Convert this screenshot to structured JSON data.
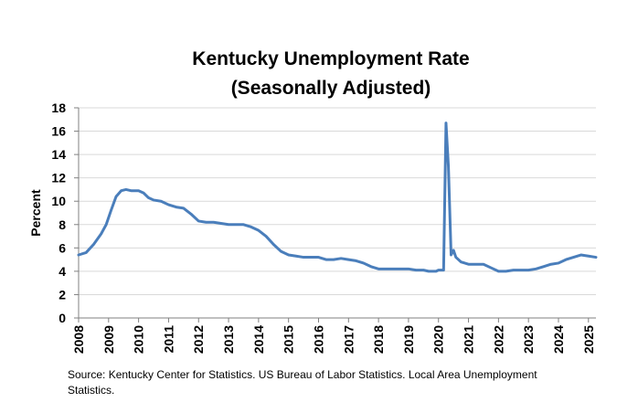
{
  "chart_data": {
    "type": "line",
    "title_line1": "Kentucky Unemployment Rate",
    "title_line2": "(Seasonally Adjusted)",
    "ylabel": "Percent",
    "xlabel": "",
    "ylim": [
      0,
      18
    ],
    "y_ticks": [
      "0",
      "2",
      "4",
      "6",
      "8",
      "10",
      "12",
      "14",
      "16",
      "18"
    ],
    "x_ticks": [
      "2008",
      "2009",
      "2010",
      "2011",
      "2012",
      "2013",
      "2014",
      "2015",
      "2016",
      "2017",
      "2018",
      "2019",
      "2020",
      "2021",
      "2022",
      "2023",
      "2024",
      "2025"
    ],
    "xlim": [
      2008.0,
      2025.25
    ],
    "grid": true,
    "legend": "none",
    "series": [
      {
        "name": "Kentucky Unemployment Rate",
        "color": "#4a7ebb",
        "points": [
          [
            2008.0,
            5.4
          ],
          [
            2008.25,
            5.6
          ],
          [
            2008.5,
            6.3
          ],
          [
            2008.75,
            7.2
          ],
          [
            2008.92,
            8.0
          ],
          [
            2009.08,
            9.2
          ],
          [
            2009.25,
            10.4
          ],
          [
            2009.42,
            10.9
          ],
          [
            2009.58,
            11.0
          ],
          [
            2009.75,
            10.9
          ],
          [
            2010.0,
            10.9
          ],
          [
            2010.17,
            10.7
          ],
          [
            2010.33,
            10.3
          ],
          [
            2010.5,
            10.1
          ],
          [
            2010.75,
            10.0
          ],
          [
            2011.0,
            9.7
          ],
          [
            2011.25,
            9.5
          ],
          [
            2011.5,
            9.4
          ],
          [
            2011.75,
            8.9
          ],
          [
            2012.0,
            8.3
          ],
          [
            2012.25,
            8.2
          ],
          [
            2012.5,
            8.2
          ],
          [
            2012.75,
            8.1
          ],
          [
            2013.0,
            8.0
          ],
          [
            2013.5,
            8.0
          ],
          [
            2013.75,
            7.8
          ],
          [
            2014.0,
            7.5
          ],
          [
            2014.25,
            7.0
          ],
          [
            2014.5,
            6.3
          ],
          [
            2014.75,
            5.7
          ],
          [
            2015.0,
            5.4
          ],
          [
            2015.25,
            5.3
          ],
          [
            2015.5,
            5.2
          ],
          [
            2016.0,
            5.2
          ],
          [
            2016.25,
            5.0
          ],
          [
            2016.5,
            5.0
          ],
          [
            2016.75,
            5.1
          ],
          [
            2017.0,
            5.0
          ],
          [
            2017.25,
            4.9
          ],
          [
            2017.5,
            4.7
          ],
          [
            2017.75,
            4.4
          ],
          [
            2018.0,
            4.2
          ],
          [
            2018.5,
            4.2
          ],
          [
            2019.0,
            4.2
          ],
          [
            2019.25,
            4.1
          ],
          [
            2019.5,
            4.1
          ],
          [
            2019.67,
            4.0
          ],
          [
            2019.92,
            4.0
          ],
          [
            2020.0,
            4.1
          ],
          [
            2020.17,
            4.1
          ],
          [
            2020.25,
            16.7
          ],
          [
            2020.33,
            13.0
          ],
          [
            2020.42,
            5.4
          ],
          [
            2020.5,
            5.8
          ],
          [
            2020.58,
            5.2
          ],
          [
            2020.75,
            4.8
          ],
          [
            2021.0,
            4.6
          ],
          [
            2021.5,
            4.6
          ],
          [
            2021.75,
            4.3
          ],
          [
            2022.0,
            4.0
          ],
          [
            2022.25,
            4.0
          ],
          [
            2022.5,
            4.1
          ],
          [
            2023.0,
            4.1
          ],
          [
            2023.25,
            4.2
          ],
          [
            2023.5,
            4.4
          ],
          [
            2023.75,
            4.6
          ],
          [
            2024.0,
            4.7
          ],
          [
            2024.25,
            5.0
          ],
          [
            2024.5,
            5.2
          ],
          [
            2024.75,
            5.4
          ],
          [
            2025.0,
            5.3
          ],
          [
            2025.25,
            5.2
          ]
        ]
      }
    ]
  },
  "source": {
    "text": "Source: Kentucky Center for Statistics. US Bureau of Labor Statistics. Local Area Unemployment Statistics."
  }
}
